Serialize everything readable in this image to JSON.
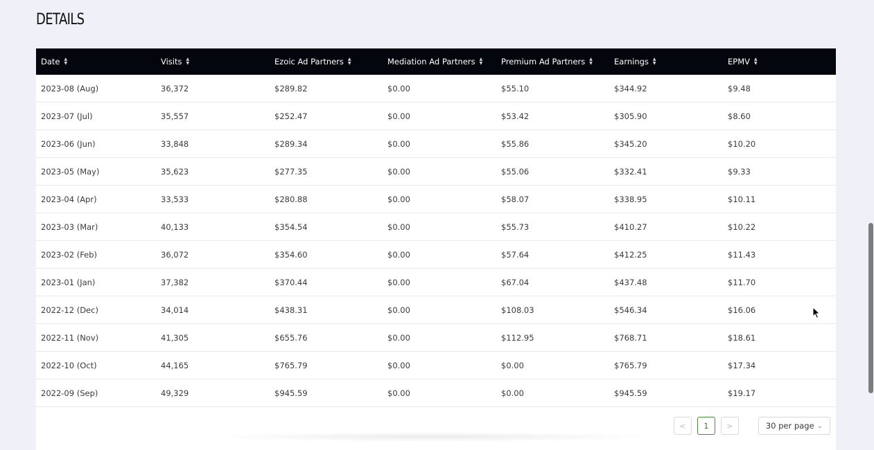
{
  "section_title": "DETAILS",
  "table": {
    "columns": [
      "Date",
      "Visits",
      "Ezoic Ad Partners",
      "Mediation Ad Partners",
      "Premium Ad Partners",
      "Earnings",
      "EPMV"
    ],
    "rows": [
      [
        "2023-08 (Aug)",
        "36,372",
        "$289.82",
        "$0.00",
        "$55.10",
        "$344.92",
        "$9.48"
      ],
      [
        "2023-07 (Jul)",
        "35,557",
        "$252.47",
        "$0.00",
        "$53.42",
        "$305.90",
        "$8.60"
      ],
      [
        "2023-06 (Jun)",
        "33,848",
        "$289.34",
        "$0.00",
        "$55.86",
        "$345.20",
        "$10.20"
      ],
      [
        "2023-05 (May)",
        "35,623",
        "$277.35",
        "$0.00",
        "$55.06",
        "$332.41",
        "$9.33"
      ],
      [
        "2023-04 (Apr)",
        "33,533",
        "$280.88",
        "$0.00",
        "$58.07",
        "$338.95",
        "$10.11"
      ],
      [
        "2023-03 (Mar)",
        "40,133",
        "$354.54",
        "$0.00",
        "$55.73",
        "$410.27",
        "$10.22"
      ],
      [
        "2023-02 (Feb)",
        "36,072",
        "$354.60",
        "$0.00",
        "$57.64",
        "$412.25",
        "$11.43"
      ],
      [
        "2023-01 (Jan)",
        "37,382",
        "$370.44",
        "$0.00",
        "$67.04",
        "$437.48",
        "$11.70"
      ],
      [
        "2022-12 (Dec)",
        "34,014",
        "$438.31",
        "$0.00",
        "$108.03",
        "$546.34",
        "$16.06"
      ],
      [
        "2022-11 (Nov)",
        "41,305",
        "$655.76",
        "$0.00",
        "$112.95",
        "$768.71",
        "$18.61"
      ],
      [
        "2022-10 (Oct)",
        "44,165",
        "$765.79",
        "$0.00",
        "$0.00",
        "$765.79",
        "$17.34"
      ],
      [
        "2022-09 (Sep)",
        "49,329",
        "$945.59",
        "$0.00",
        "$0.00",
        "$945.59",
        "$19.17"
      ]
    ]
  },
  "pagination": {
    "prev_icon": "<",
    "current_page": "1",
    "next_icon": ">",
    "per_page": "30 per page"
  },
  "icons": {
    "sort": "sort-arrows-icon",
    "cursor": "mouse-pointer-icon"
  },
  "colors": {
    "header_bg": "#03060c",
    "page_bg": "#f0f0f9",
    "active_page_border": "#4a8a3a"
  }
}
